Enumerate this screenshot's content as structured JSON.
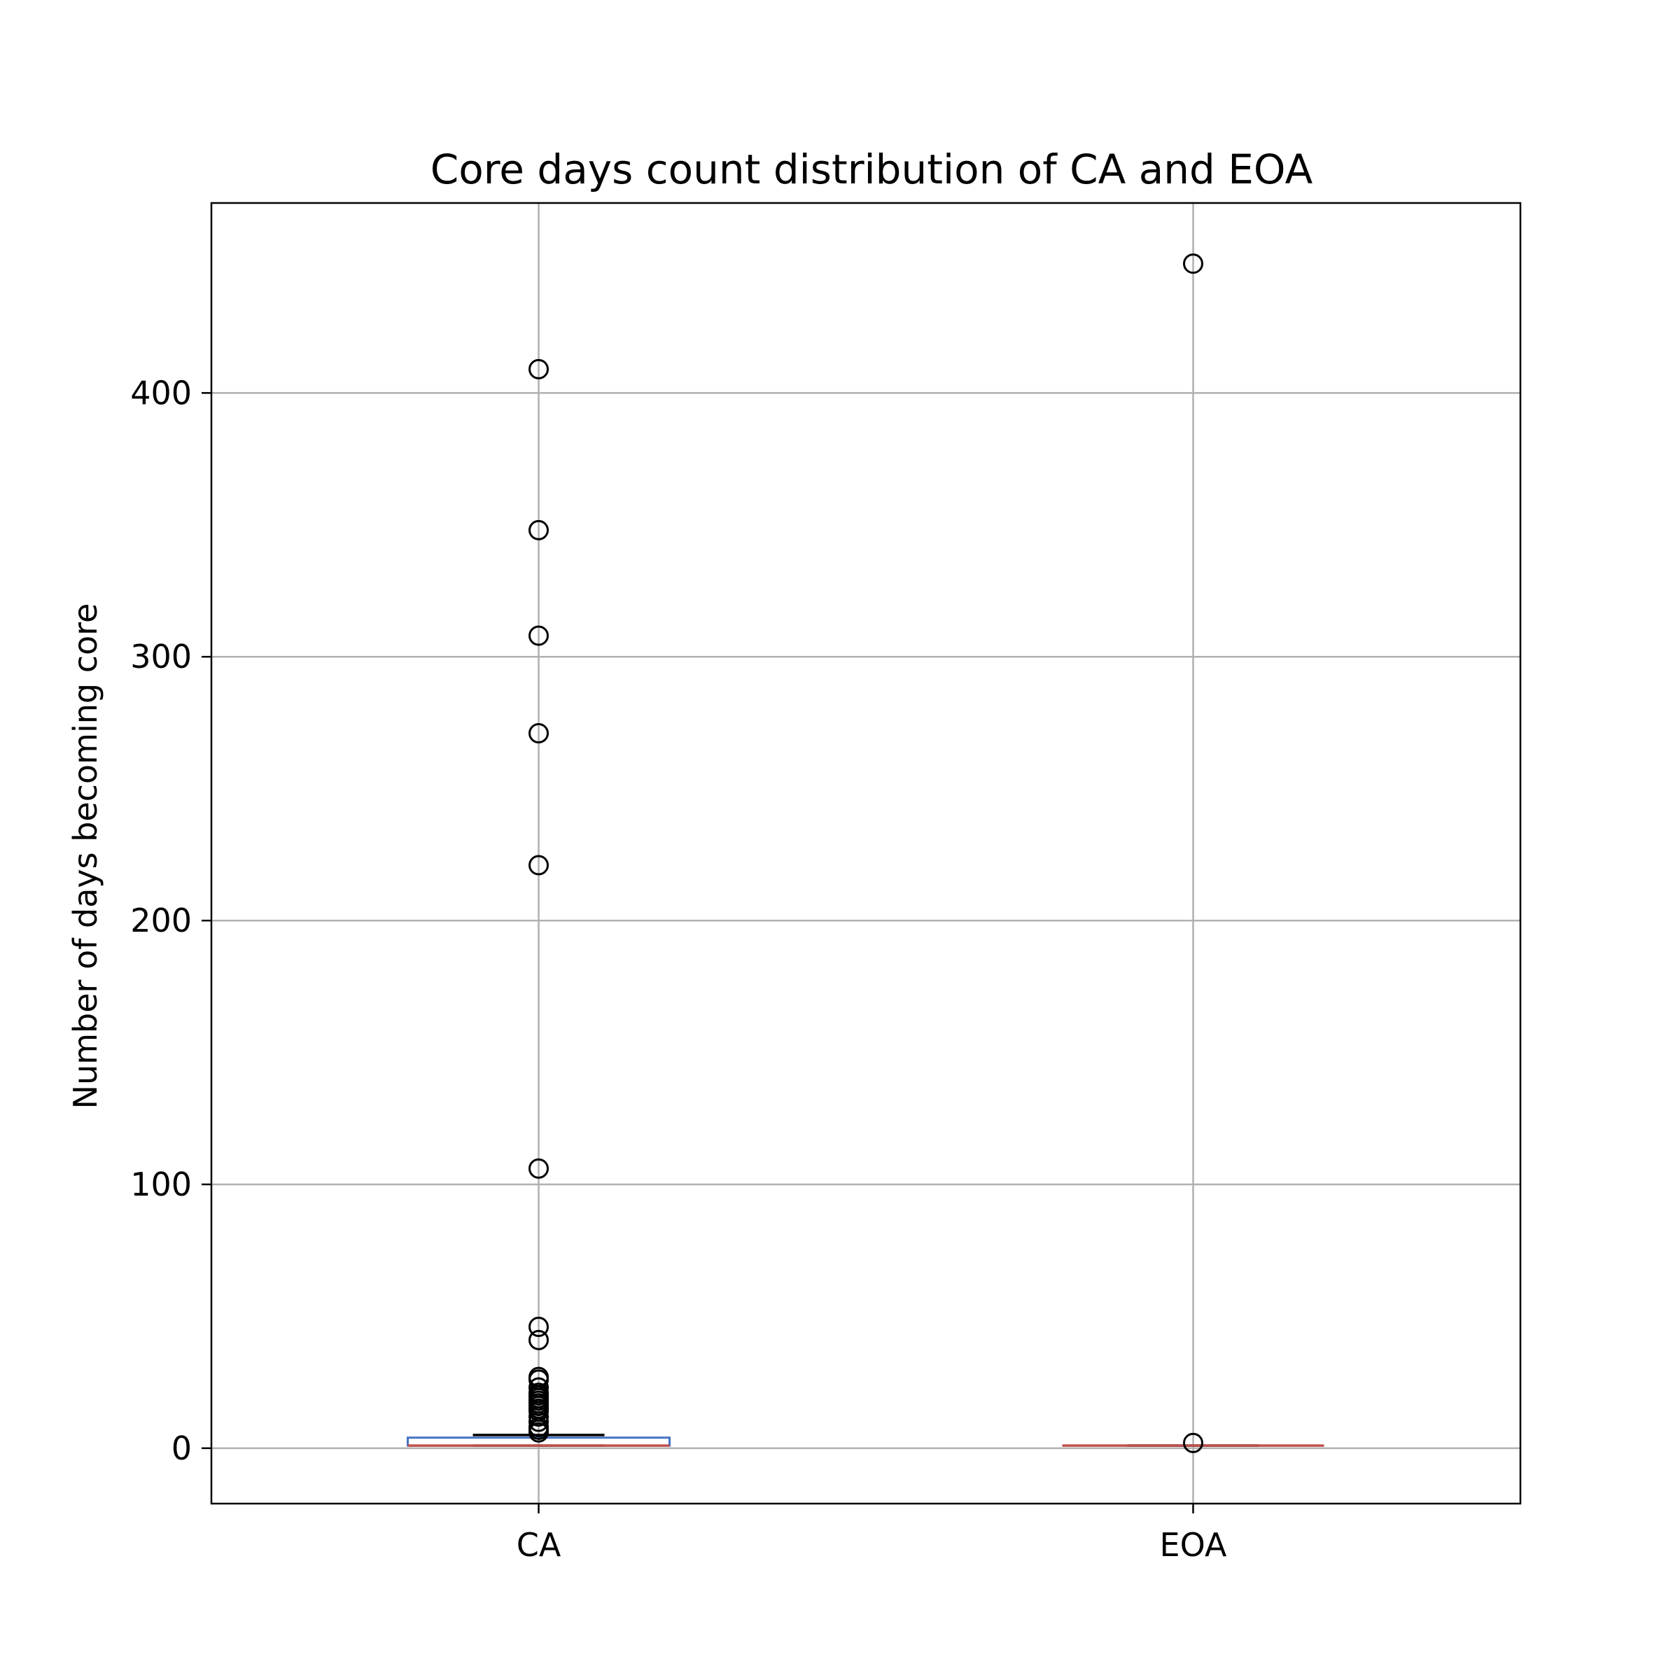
{
  "chart_data": {
    "type": "box",
    "title": "Core days count distribution of CA and EOA",
    "xlabel": "",
    "ylabel": "Number of days becoming core",
    "ylim": [
      -21,
      472
    ],
    "yticks": [
      0,
      100,
      200,
      300,
      400
    ],
    "grid": true,
    "categories": [
      "CA",
      "EOA"
    ],
    "boxes": [
      {
        "category": "CA",
        "whislo": 1,
        "q1": 1,
        "med": 1,
        "q3": 4,
        "whishi": 5,
        "fliers": [
          409,
          348,
          308,
          271,
          221,
          106,
          46,
          41,
          27,
          26,
          23,
          21,
          20,
          19,
          18,
          17,
          16,
          15,
          14,
          12,
          10,
          8,
          7,
          6
        ]
      },
      {
        "category": "EOA",
        "whislo": 1,
        "q1": 1,
        "med": 1,
        "q3": 1,
        "whishi": 1,
        "fliers": [
          449,
          2
        ]
      }
    ],
    "colors": {
      "box": "#4472c4",
      "median": "#c0504d",
      "whisker": "#000000",
      "flier": "#000000",
      "grid": "#b0b0b0"
    }
  }
}
